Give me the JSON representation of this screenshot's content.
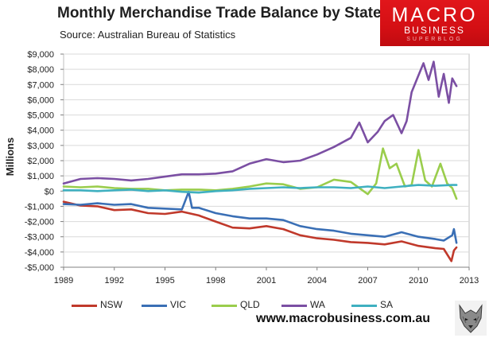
{
  "header": {
    "title": "Monthly Merchandise Trade Balance by State",
    "source": "Source:  Australian Bureau of Statistics"
  },
  "logo": {
    "line1": "MACRO",
    "line2": "BUSINESS",
    "line3": "SUPERBLOG"
  },
  "footer": {
    "website": "www.macrobusiness.com.au",
    "mascot_icon": "wolf-head-icon"
  },
  "chart_data": {
    "type": "line",
    "title": "Monthly Merchandise Trade Balance by State",
    "ylabel": "Millions",
    "xlabel": "",
    "xlim": [
      1989,
      2013
    ],
    "ylim": [
      -5000,
      9000
    ],
    "x_ticks": [
      1989,
      1992,
      1995,
      1998,
      2001,
      2004,
      2007,
      2010,
      2013
    ],
    "x_tick_labels": [
      "1989",
      "1992",
      "1995",
      "1998",
      "2001",
      "2004",
      "2007",
      "2010",
      "2013"
    ],
    "y_ticks": [
      -5000,
      -4000,
      -3000,
      -2000,
      -1000,
      0,
      1000,
      2000,
      3000,
      4000,
      5000,
      6000,
      7000,
      8000,
      9000
    ],
    "y_tick_labels": [
      "-$5,000",
      "-$4,000",
      "-$3,000",
      "-$2,000",
      "-$1,000",
      "$0",
      "$1,000",
      "$2,000",
      "$3,000",
      "$4,000",
      "$5,000",
      "$6,000",
      "$7,000",
      "$8,000",
      "$9,000"
    ],
    "grid": "horizontal",
    "legend_position": "bottom",
    "background": "#ffffff",
    "series": [
      {
        "name": "NSW",
        "color": "#c0392b",
        "points": [
          [
            1989.0,
            -700
          ],
          [
            1990.0,
            -950
          ],
          [
            1991.0,
            -1000
          ],
          [
            1992.0,
            -1250
          ],
          [
            1993.0,
            -1200
          ],
          [
            1994.0,
            -1450
          ],
          [
            1995.0,
            -1500
          ],
          [
            1996.0,
            -1350
          ],
          [
            1997.0,
            -1600
          ],
          [
            1998.0,
            -2000
          ],
          [
            1999.0,
            -2400
          ],
          [
            2000.0,
            -2450
          ],
          [
            2001.0,
            -2300
          ],
          [
            2002.0,
            -2500
          ],
          [
            2003.0,
            -2900
          ],
          [
            2004.0,
            -3100
          ],
          [
            2005.0,
            -3200
          ],
          [
            2006.0,
            -3350
          ],
          [
            2007.0,
            -3400
          ],
          [
            2008.0,
            -3500
          ],
          [
            2009.0,
            -3300
          ],
          [
            2010.0,
            -3600
          ],
          [
            2011.0,
            -3750
          ],
          [
            2011.5,
            -3800
          ],
          [
            2011.95,
            -4600
          ],
          [
            2012.1,
            -3900
          ],
          [
            2012.25,
            -3700
          ]
        ]
      },
      {
        "name": "VIC",
        "color": "#3a6fb5",
        "points": [
          [
            1989.0,
            -850
          ],
          [
            1990.0,
            -900
          ],
          [
            1991.0,
            -800
          ],
          [
            1992.0,
            -900
          ],
          [
            1993.0,
            -850
          ],
          [
            1994.0,
            -1100
          ],
          [
            1995.0,
            -1150
          ],
          [
            1996.0,
            -1200
          ],
          [
            1996.4,
            -50
          ],
          [
            1996.6,
            -1100
          ],
          [
            1997.0,
            -1100
          ],
          [
            1998.0,
            -1450
          ],
          [
            1999.0,
            -1650
          ],
          [
            2000.0,
            -1800
          ],
          [
            2001.0,
            -1800
          ],
          [
            2002.0,
            -1900
          ],
          [
            2003.0,
            -2300
          ],
          [
            2004.0,
            -2500
          ],
          [
            2005.0,
            -2600
          ],
          [
            2006.0,
            -2800
          ],
          [
            2007.0,
            -2900
          ],
          [
            2008.0,
            -3000
          ],
          [
            2009.0,
            -2700
          ],
          [
            2010.0,
            -3000
          ],
          [
            2011.0,
            -3150
          ],
          [
            2011.5,
            -3250
          ],
          [
            2012.0,
            -2900
          ],
          [
            2012.1,
            -2500
          ],
          [
            2012.25,
            -3400
          ]
        ]
      },
      {
        "name": "QLD",
        "color": "#9acd4c",
        "points": [
          [
            1989.0,
            300
          ],
          [
            1990.0,
            250
          ],
          [
            1991.0,
            300
          ],
          [
            1992.0,
            200
          ],
          [
            1993.0,
            150
          ],
          [
            1994.0,
            150
          ],
          [
            1995.0,
            50
          ],
          [
            1996.0,
            100
          ],
          [
            1997.0,
            100
          ],
          [
            1998.0,
            50
          ],
          [
            1999.0,
            150
          ],
          [
            2000.0,
            300
          ],
          [
            2001.0,
            500
          ],
          [
            2002.0,
            450
          ],
          [
            2003.0,
            150
          ],
          [
            2004.0,
            250
          ],
          [
            2005.0,
            750
          ],
          [
            2006.0,
            600
          ],
          [
            2007.0,
            -200
          ],
          [
            2007.5,
            500
          ],
          [
            2007.9,
            2800
          ],
          [
            2008.3,
            1500
          ],
          [
            2008.7,
            1800
          ],
          [
            2009.2,
            300
          ],
          [
            2009.6,
            400
          ],
          [
            2010.0,
            2700
          ],
          [
            2010.4,
            700
          ],
          [
            2010.8,
            300
          ],
          [
            2011.3,
            1800
          ],
          [
            2011.7,
            500
          ],
          [
            2012.0,
            200
          ],
          [
            2012.25,
            -500
          ]
        ]
      },
      {
        "name": "WA",
        "color": "#7b4fa3",
        "points": [
          [
            1989.0,
            500
          ],
          [
            1990.0,
            800
          ],
          [
            1991.0,
            850
          ],
          [
            1992.0,
            800
          ],
          [
            1993.0,
            700
          ],
          [
            1994.0,
            800
          ],
          [
            1995.0,
            950
          ],
          [
            1996.0,
            1100
          ],
          [
            1997.0,
            1100
          ],
          [
            1998.0,
            1150
          ],
          [
            1999.0,
            1300
          ],
          [
            2000.0,
            1800
          ],
          [
            2001.0,
            2100
          ],
          [
            2002.0,
            1900
          ],
          [
            2003.0,
            2000
          ],
          [
            2004.0,
            2400
          ],
          [
            2005.0,
            2900
          ],
          [
            2006.0,
            3500
          ],
          [
            2006.5,
            4500
          ],
          [
            2007.0,
            3200
          ],
          [
            2007.6,
            3900
          ],
          [
            2008.0,
            4600
          ],
          [
            2008.5,
            5000
          ],
          [
            2009.0,
            3800
          ],
          [
            2009.3,
            4600
          ],
          [
            2009.6,
            6500
          ],
          [
            2010.0,
            7600
          ],
          [
            2010.3,
            8400
          ],
          [
            2010.6,
            7300
          ],
          [
            2010.9,
            8500
          ],
          [
            2011.2,
            6200
          ],
          [
            2011.5,
            7700
          ],
          [
            2011.8,
            5800
          ],
          [
            2012.0,
            7400
          ],
          [
            2012.25,
            6900
          ]
        ]
      },
      {
        "name": "SA",
        "color": "#3fb0c0",
        "points": [
          [
            1989.0,
            50
          ],
          [
            1990.0,
            50
          ],
          [
            1991.0,
            0
          ],
          [
            1992.0,
            50
          ],
          [
            1993.0,
            100
          ],
          [
            1994.0,
            0
          ],
          [
            1995.0,
            50
          ],
          [
            1996.0,
            -50
          ],
          [
            1997.0,
            -100
          ],
          [
            1998.0,
            0
          ],
          [
            1999.0,
            50
          ],
          [
            2000.0,
            150
          ],
          [
            2001.0,
            200
          ],
          [
            2002.0,
            250
          ],
          [
            2003.0,
            200
          ],
          [
            2004.0,
            250
          ],
          [
            2005.0,
            250
          ],
          [
            2006.0,
            200
          ],
          [
            2007.0,
            300
          ],
          [
            2008.0,
            200
          ],
          [
            2009.0,
            300
          ],
          [
            2010.0,
            400
          ],
          [
            2011.0,
            350
          ],
          [
            2012.0,
            400
          ],
          [
            2012.25,
            400
          ]
        ]
      }
    ]
  }
}
